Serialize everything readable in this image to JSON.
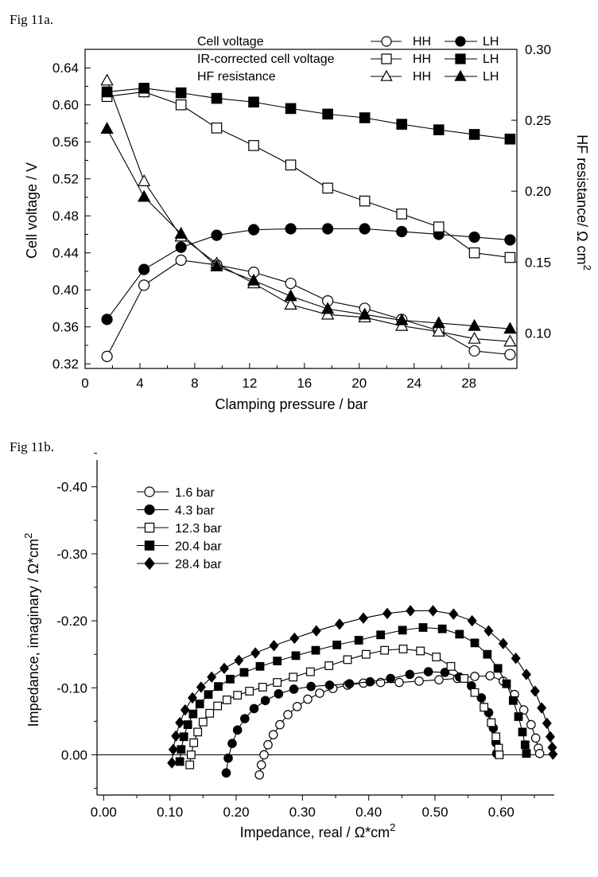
{
  "figures": {
    "fig_a_label": "Fig 11a.",
    "fig_b_label": "Fig 11b."
  },
  "chart_data": [
    {
      "type": "line",
      "title": "",
      "xlabel": "Clamping pressure / bar",
      "ylabel": "Cell voltage / V",
      "y2label": "HF resistance/ Ω cm",
      "y2label_sup": "2",
      "xlim": [
        0,
        31.5
      ],
      "ylim": [
        0.315,
        0.66
      ],
      "y2lim": [
        0.075,
        0.3
      ],
      "xticks": [
        0,
        4,
        8,
        12,
        16,
        20,
        24,
        28
      ],
      "yticks": [
        0.32,
        0.36,
        0.4,
        0.44,
        0.48,
        0.52,
        0.56,
        0.6,
        0.64
      ],
      "y2ticks": [
        0.1,
        0.15,
        0.2,
        0.25,
        0.3
      ],
      "xtick_labels": [
        "0",
        "4",
        "8",
        "12",
        "16",
        "20",
        "24",
        "28"
      ],
      "ytick_labels": [
        "0.32",
        "0.36",
        "0.40",
        "0.44",
        "0.48",
        "0.52",
        "0.56",
        "0.60",
        "0.64"
      ],
      "y2tick_labels": [
        "0.10",
        "0.15",
        "0.20",
        "0.25",
        "0.30"
      ],
      "legend_rows": [
        {
          "label": "Cell voltage",
          "hh": "HH",
          "lh": "LH"
        },
        {
          "label": "IR-corrected cell voltage",
          "hh": "HH",
          "lh": "LH"
        },
        {
          "label": "HF resistance",
          "hh": "HH",
          "lh": "LH"
        }
      ],
      "x": [
        1.6,
        4.3,
        7.0,
        9.6,
        12.3,
        15.0,
        17.7,
        20.4,
        23.1,
        25.8,
        28.4,
        31.0
      ],
      "series": [
        {
          "name": "Cell voltage HH",
          "axis": "left",
          "marker": "circle",
          "filled": false,
          "values": [
            0.328,
            0.405,
            0.432,
            0.427,
            0.419,
            0.407,
            0.388,
            0.38,
            0.368,
            0.356,
            0.334,
            0.33
          ]
        },
        {
          "name": "Cell voltage LH",
          "axis": "left",
          "marker": "circle",
          "filled": true,
          "values": [
            0.368,
            0.422,
            0.446,
            0.459,
            0.465,
            0.466,
            0.466,
            0.466,
            0.463,
            0.46,
            0.457,
            0.454
          ]
        },
        {
          "name": "IR-corrected cell voltage HH",
          "axis": "left",
          "marker": "square",
          "filled": false,
          "values": [
            0.609,
            0.614,
            0.6,
            0.575,
            0.556,
            0.535,
            0.51,
            0.496,
            0.482,
            0.468,
            0.44,
            0.435
          ]
        },
        {
          "name": "IR-corrected cell voltage LH",
          "axis": "left",
          "marker": "square",
          "filled": true,
          "values": [
            0.614,
            0.618,
            0.613,
            0.607,
            0.603,
            0.596,
            0.59,
            0.586,
            0.579,
            0.573,
            0.568,
            0.563
          ]
        },
        {
          "name": "HF resistance HH",
          "axis": "right",
          "marker": "triangle",
          "filled": false,
          "values": [
            0.278,
            0.207,
            0.168,
            0.149,
            0.135,
            0.12,
            0.113,
            0.111,
            0.105,
            0.101,
            0.096,
            0.094
          ]
        },
        {
          "name": "HF resistance LH",
          "axis": "right",
          "marker": "triangle",
          "filled": true,
          "values": [
            0.244,
            0.196,
            0.17,
            0.147,
            0.137,
            0.126,
            0.117,
            0.113,
            0.109,
            0.107,
            0.105,
            0.103
          ]
        }
      ]
    },
    {
      "type": "scatter",
      "title": "",
      "xlabel": "Impedance, real / Ω*cm",
      "xlabel_sup": "2",
      "ylabel": "Impedance, imaginary / Ω*cm",
      "ylabel_sup": "2",
      "xlim": [
        -0.01,
        0.68
      ],
      "ylim": [
        0.06,
        -0.44
      ],
      "xticks": [
        0.0,
        0.1,
        0.2,
        0.3,
        0.4,
        0.5,
        0.6
      ],
      "yticks": [
        0.0,
        -0.1,
        -0.2,
        -0.3,
        -0.4
      ],
      "xtick_labels": [
        "0.00",
        "0.10",
        "0.20",
        "0.30",
        "0.40",
        "0.50",
        "0.60"
      ],
      "ytick_labels": [
        "0.00",
        "-0.10",
        "-0.20",
        "-0.30",
        "-0.40"
      ],
      "legend_position": "top-left",
      "series": [
        {
          "name": "1.6 bar",
          "marker": "circle",
          "filled": false,
          "x": [
            0.235,
            0.238,
            0.242,
            0.248,
            0.256,
            0.266,
            0.278,
            0.292,
            0.308,
            0.326,
            0.346,
            0.368,
            0.392,
            0.418,
            0.446,
            0.476,
            0.506,
            0.534,
            0.56,
            0.583,
            0.603,
            0.62,
            0.634,
            0.645,
            0.652,
            0.656,
            0.658
          ],
          "y": [
            0.03,
            0.015,
            0.0,
            -0.015,
            -0.03,
            -0.045,
            -0.06,
            -0.072,
            -0.083,
            -0.092,
            -0.099,
            -0.104,
            -0.107,
            -0.108,
            -0.108,
            -0.11,
            -0.112,
            -0.114,
            -0.117,
            -0.118,
            -0.11,
            -0.09,
            -0.067,
            -0.045,
            -0.025,
            -0.01,
            -0.002
          ]
        },
        {
          "name": "4.3 bar",
          "marker": "circle",
          "filled": true,
          "x": [
            0.185,
            0.188,
            0.194,
            0.202,
            0.213,
            0.227,
            0.244,
            0.264,
            0.287,
            0.313,
            0.341,
            0.371,
            0.402,
            0.433,
            0.462,
            0.49,
            0.515,
            0.537,
            0.555,
            0.57,
            0.581,
            0.588,
            0.592,
            0.593
          ],
          "y": [
            0.027,
            0.005,
            -0.017,
            -0.037,
            -0.054,
            -0.069,
            -0.081,
            -0.091,
            -0.098,
            -0.102,
            -0.104,
            -0.106,
            -0.109,
            -0.114,
            -0.12,
            -0.124,
            -0.123,
            -0.116,
            -0.103,
            -0.085,
            -0.063,
            -0.04,
            -0.018,
            -0.002
          ]
        },
        {
          "name": "12.3 bar",
          "marker": "square",
          "filled": false,
          "x": [
            0.13,
            0.132,
            0.136,
            0.142,
            0.15,
            0.16,
            0.172,
            0.186,
            0.202,
            0.22,
            0.24,
            0.262,
            0.286,
            0.312,
            0.34,
            0.368,
            0.396,
            0.424,
            0.452,
            0.478,
            0.502,
            0.524,
            0.544,
            0.56,
            0.574,
            0.585,
            0.592,
            0.596,
            0.597
          ],
          "y": [
            0.015,
            0.0,
            -0.018,
            -0.034,
            -0.049,
            -0.062,
            -0.073,
            -0.082,
            -0.089,
            -0.095,
            -0.101,
            -0.108,
            -0.116,
            -0.124,
            -0.133,
            -0.142,
            -0.15,
            -0.156,
            -0.158,
            -0.155,
            -0.146,
            -0.132,
            -0.114,
            -0.093,
            -0.071,
            -0.048,
            -0.027,
            -0.01,
            0.0
          ]
        },
        {
          "name": "20.4 bar",
          "marker": "square",
          "filled": true,
          "x": [
            0.115,
            0.117,
            0.121,
            0.127,
            0.135,
            0.145,
            0.158,
            0.173,
            0.191,
            0.212,
            0.236,
            0.262,
            0.29,
            0.32,
            0.352,
            0.385,
            0.418,
            0.451,
            0.482,
            0.511,
            0.537,
            0.56,
            0.579,
            0.595,
            0.608,
            0.618,
            0.626,
            0.632,
            0.636,
            0.638
          ],
          "y": [
            0.01,
            -0.008,
            -0.027,
            -0.045,
            -0.061,
            -0.076,
            -0.09,
            -0.102,
            -0.113,
            -0.123,
            -0.132,
            -0.14,
            -0.148,
            -0.156,
            -0.164,
            -0.171,
            -0.179,
            -0.186,
            -0.19,
            -0.188,
            -0.18,
            -0.167,
            -0.15,
            -0.129,
            -0.106,
            -0.081,
            -0.057,
            -0.034,
            -0.015,
            -0.002
          ]
        },
        {
          "name": "28.4 bar",
          "marker": "diamond",
          "filled": true,
          "x": [
            0.103,
            0.105,
            0.109,
            0.115,
            0.123,
            0.134,
            0.147,
            0.163,
            0.182,
            0.204,
            0.229,
            0.257,
            0.288,
            0.321,
            0.356,
            0.392,
            0.428,
            0.463,
            0.497,
            0.528,
            0.556,
            0.581,
            0.603,
            0.622,
            0.638,
            0.651,
            0.661,
            0.669,
            0.674,
            0.677,
            0.678
          ],
          "y": [
            0.012,
            -0.008,
            -0.028,
            -0.048,
            -0.067,
            -0.085,
            -0.101,
            -0.116,
            -0.129,
            -0.141,
            -0.152,
            -0.163,
            -0.174,
            -0.185,
            -0.195,
            -0.204,
            -0.211,
            -0.215,
            -0.215,
            -0.21,
            -0.2,
            -0.185,
            -0.166,
            -0.144,
            -0.12,
            -0.095,
            -0.07,
            -0.047,
            -0.027,
            -0.011,
            -0.001
          ]
        }
      ]
    }
  ]
}
